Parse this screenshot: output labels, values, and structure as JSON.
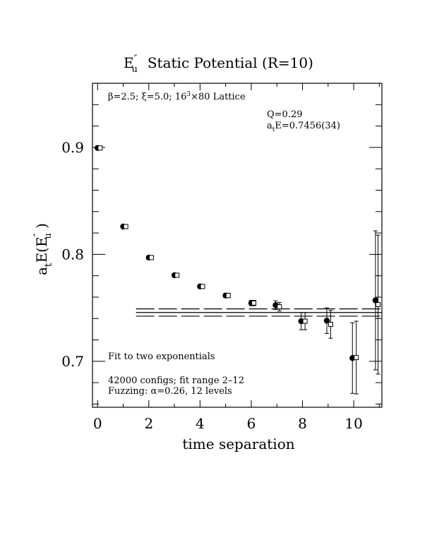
{
  "chart_data": {
    "type": "scatter",
    "title": "E″u  Static Potential (R=10)",
    "title_main": "E",
    "title_sup": "″",
    "title_sub": "u",
    "title_rest": "Static Potential (R=10)",
    "xlabel": "time separation",
    "ylabel": "a_t E(E″u)",
    "ylabel_a": "a",
    "ylabel_t": "t",
    "ylabel_E": "E(E",
    "ylabel_sup": "″",
    "ylabel_sub": "u",
    "ylabel_close": " )",
    "xlim": [
      -0.2,
      11.1
    ],
    "ylim": [
      0.657,
      0.96
    ],
    "x_ticks": [
      "0",
      "2",
      "4",
      "6",
      "8",
      "10"
    ],
    "x_tick_values": [
      0,
      2,
      4,
      6,
      8,
      10
    ],
    "y_ticks": [
      "0.7",
      "0.8",
      "0.9"
    ],
    "y_tick_values": [
      0.7,
      0.8,
      0.9
    ],
    "annotations": {
      "lattice": "β=2.5; ξ=5.0; 16³×80 Lattice",
      "lattice_a": "β=2.5; ξ=5.0; 16",
      "lattice_sup": "3",
      "lattice_b": "×80 Lattice",
      "q": "Q=0.29",
      "energy": "a_tE=0.7456(34)",
      "energy_a": "a",
      "energy_t": "t",
      "energy_b": "E=0.7456(34)",
      "fit": "Fit to two exponentials",
      "configs": "42000 configs; fit range 2–12",
      "fuzzing": "Fuzzing: α=0.26, 12 levels"
    },
    "fit": {
      "value": 0.7456,
      "error": 0.0034,
      "t_start": 1.5,
      "t_end": 11.1
    },
    "series": [
      {
        "marker": "filled-circle",
        "points": [
          {
            "x": 0,
            "y": 0.8995,
            "err": 0.0005
          },
          {
            "x": 1,
            "y": 0.826,
            "err": 0.001
          },
          {
            "x": 2,
            "y": 0.797,
            "err": 0.001
          },
          {
            "x": 3,
            "y": 0.7805,
            "err": 0.0015
          },
          {
            "x": 4,
            "y": 0.77,
            "err": 0.0015
          },
          {
            "x": 5,
            "y": 0.7615,
            "err": 0.002
          },
          {
            "x": 6,
            "y": 0.7545,
            "err": 0.0025
          },
          {
            "x": 6.95,
            "y": 0.7525,
            "err": 0.004
          },
          {
            "x": 7.95,
            "y": 0.7375,
            "err": 0.008
          },
          {
            "x": 8.95,
            "y": 0.738,
            "err": 0.012
          },
          {
            "x": 9.95,
            "y": 0.703,
            "err": 0.033
          },
          {
            "x": 10.85,
            "y": 0.757,
            "err": 0.065
          }
        ]
      },
      {
        "marker": "open-square",
        "points": [
          {
            "x": 0.1,
            "y": 0.8995,
            "err": 0.0005
          },
          {
            "x": 1.1,
            "y": 0.826,
            "err": 0.001
          },
          {
            "x": 2.1,
            "y": 0.797,
            "err": 0.001
          },
          {
            "x": 3.1,
            "y": 0.7805,
            "err": 0.0015
          },
          {
            "x": 4.1,
            "y": 0.77,
            "err": 0.0015
          },
          {
            "x": 5.1,
            "y": 0.7615,
            "err": 0.002
          },
          {
            "x": 6.1,
            "y": 0.7545,
            "err": 0.0025
          },
          {
            "x": 7.1,
            "y": 0.751,
            "err": 0.004
          },
          {
            "x": 8.1,
            "y": 0.7375,
            "err": 0.008
          },
          {
            "x": 9.1,
            "y": 0.7345,
            "err": 0.013
          },
          {
            "x": 10.1,
            "y": 0.7035,
            "err": 0.034
          },
          {
            "x": 10.95,
            "y": 0.753,
            "err": 0.065
          }
        ]
      }
    ]
  }
}
